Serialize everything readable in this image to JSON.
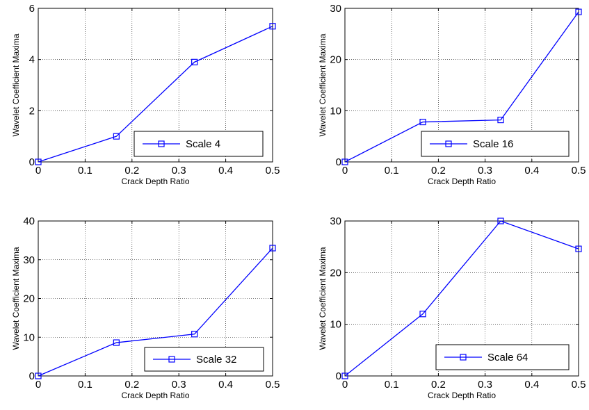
{
  "chart_data": [
    {
      "type": "line",
      "xlabel": "Crack Depth Ratio",
      "ylabel": "Wavelet Coefficient Maxima",
      "xlim": [
        0,
        0.5
      ],
      "ylim": [
        0,
        6
      ],
      "xticks": [
        "0",
        "0.1",
        "0.2",
        "0.3",
        "0.4",
        "0.5"
      ],
      "yticks": [
        "0",
        "2",
        "4",
        "6"
      ],
      "grid": true,
      "legend_position": "bottom-right",
      "series": [
        {
          "name": "Scale 4",
          "x": [
            0,
            0.1667,
            0.3333,
            0.5
          ],
          "values": [
            0,
            1.0,
            3.9,
            5.3
          ],
          "color": "#0000ff",
          "marker": "square"
        }
      ]
    },
    {
      "type": "line",
      "xlabel": "Crack Depth Ratio",
      "ylabel": "Wavelet Coefficient Maxima",
      "xlim": [
        0,
        0.5
      ],
      "ylim": [
        0,
        30
      ],
      "xticks": [
        "0",
        "0.1",
        "0.2",
        "0.3",
        "0.4",
        "0.5"
      ],
      "yticks": [
        "0",
        "10",
        "20",
        "30"
      ],
      "grid": true,
      "legend_position": "bottom-right",
      "series": [
        {
          "name": "Scale 16",
          "x": [
            0,
            0.1667,
            0.3333,
            0.5
          ],
          "values": [
            0,
            7.8,
            8.2,
            29.3
          ],
          "color": "#0000ff",
          "marker": "square"
        }
      ]
    },
    {
      "type": "line",
      "xlabel": "Crack Depth Ratio",
      "ylabel": "Wavelet Coefficient Maxima",
      "xlim": [
        0,
        0.5
      ],
      "ylim": [
        0,
        40
      ],
      "xticks": [
        "0",
        "0.1",
        "0.2",
        "0.3",
        "0.4",
        "0.5"
      ],
      "yticks": [
        "0",
        "10",
        "20",
        "30",
        "40"
      ],
      "grid": true,
      "legend_position": "bottom-right",
      "series": [
        {
          "name": "Scale 32",
          "x": [
            0,
            0.1667,
            0.3333,
            0.5
          ],
          "values": [
            0,
            8.6,
            10.8,
            33.0
          ],
          "color": "#0000ff",
          "marker": "square"
        }
      ]
    },
    {
      "type": "line",
      "xlabel": "Crack Depth Ratio",
      "ylabel": "Wavelet Coefficient Maxima",
      "xlim": [
        0,
        0.5
      ],
      "ylim": [
        0,
        30
      ],
      "xticks": [
        "0",
        "0.1",
        "0.2",
        "0.3",
        "0.4",
        "0.5"
      ],
      "yticks": [
        "0",
        "10",
        "20",
        "30"
      ],
      "grid": true,
      "legend_position": "bottom-right",
      "series": [
        {
          "name": "Scale 64",
          "x": [
            0,
            0.1667,
            0.3333,
            0.5
          ],
          "values": [
            0,
            12.0,
            30.0,
            24.6
          ],
          "color": "#0000ff",
          "marker": "square"
        }
      ]
    }
  ]
}
